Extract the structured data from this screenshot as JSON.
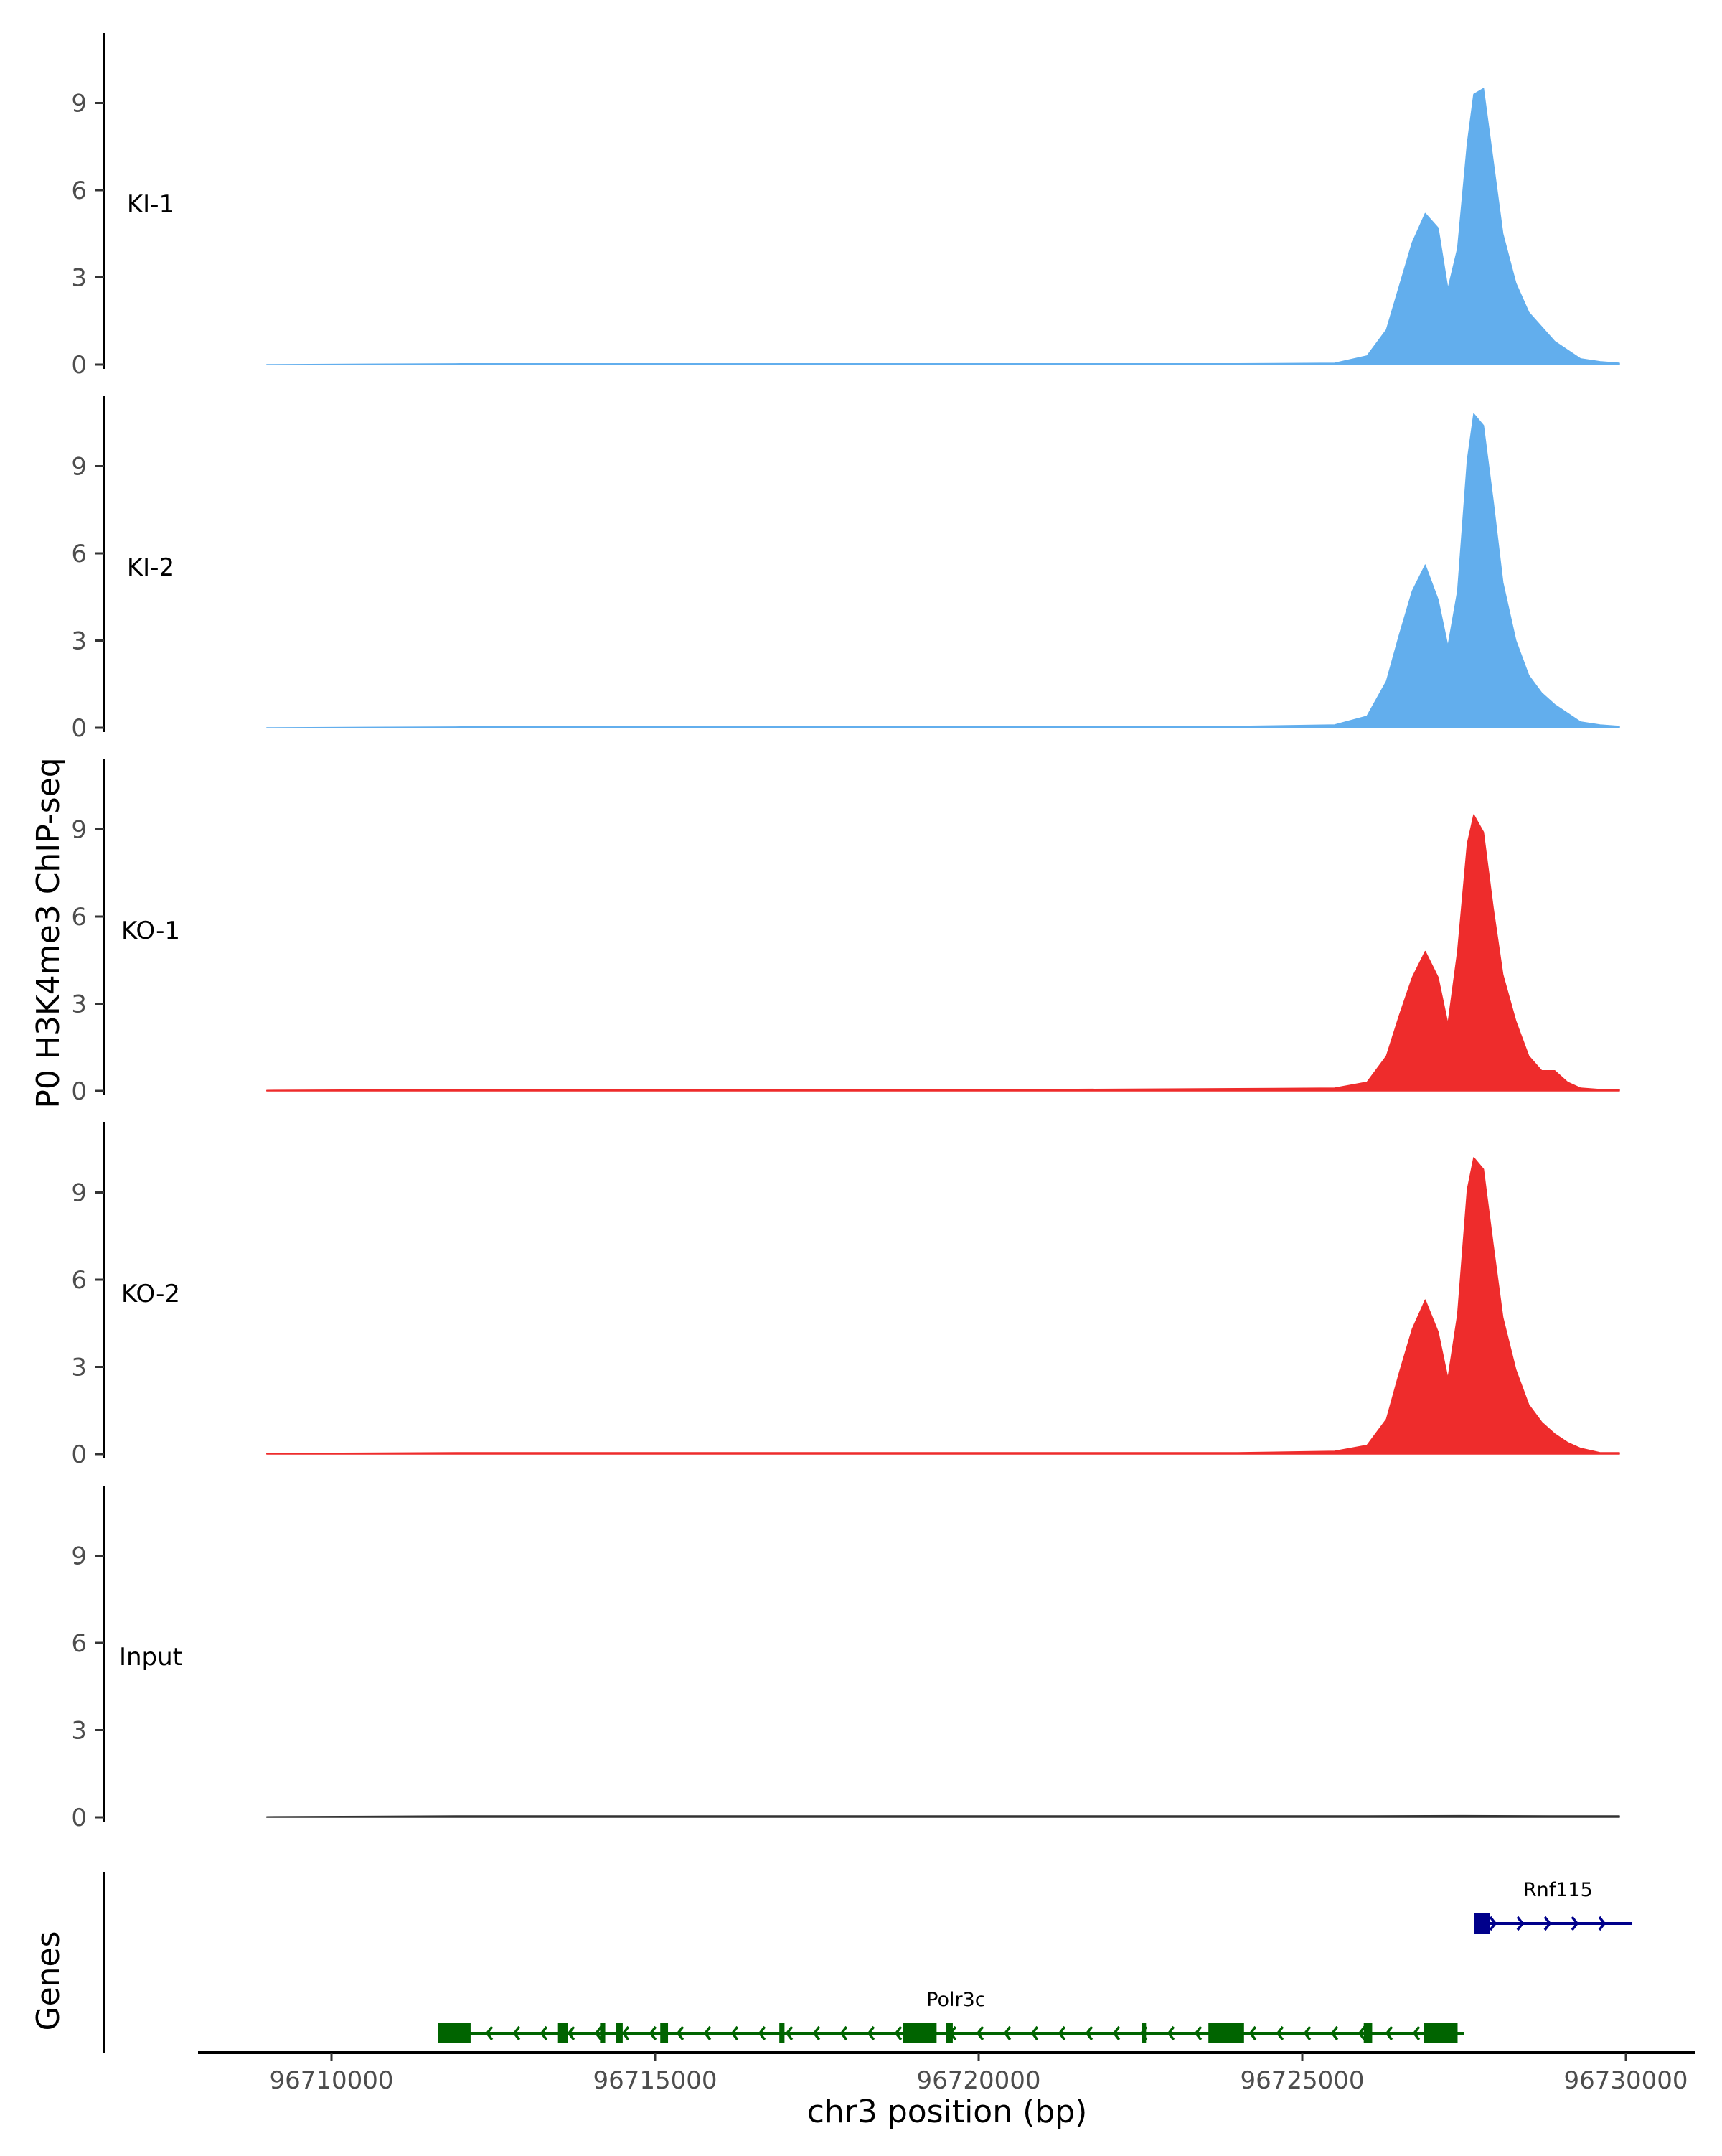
{
  "chart_data": {
    "type": "area",
    "title": "",
    "ylabel": "P0 H3K4me3 ChIP-seq",
    "xlabel": "chr3 position (bp)",
    "chromosome": "chr3",
    "xlim": [
      96708000,
      96731000
    ],
    "ylim": [
      0,
      11.5
    ],
    "y_ticks": [
      0,
      3,
      6,
      9
    ],
    "y_tick_labels": [
      "0",
      "3",
      "6",
      "9"
    ],
    "x_ticks": [
      96710000,
      96715000,
      96720000,
      96725000,
      96730000
    ],
    "x_tick_labels": [
      "96710000",
      "96715000",
      "96720000",
      "96725000",
      "96730000"
    ],
    "grid": false,
    "genes_label": "Genes",
    "series": [
      {
        "name": "KI-1",
        "color": "#62aeed",
        "x": [
          96709000,
          96712000,
          96715000,
          96718000,
          96721000,
          96724000,
          96725500,
          96726000,
          96726300,
          96726500,
          96726700,
          96726900,
          96727100,
          96727250,
          96727400,
          96727550,
          96727650,
          96727800,
          96727950,
          96728100,
          96728300,
          96728500,
          96728700,
          96728900,
          96729100,
          96729300,
          96729600,
          96729900
        ],
        "values": [
          0.0,
          0.03,
          0.03,
          0.03,
          0.03,
          0.03,
          0.05,
          0.3,
          1.2,
          2.7,
          4.2,
          5.2,
          4.7,
          2.6,
          4.0,
          7.6,
          9.3,
          9.5,
          7.0,
          4.5,
          2.8,
          1.8,
          1.3,
          0.8,
          0.5,
          0.2,
          0.1,
          0.05
        ]
      },
      {
        "name": "KI-2",
        "color": "#62aeed",
        "x": [
          96709000,
          96712000,
          96715000,
          96718000,
          96721000,
          96724000,
          96725500,
          96726000,
          96726300,
          96726500,
          96726700,
          96726900,
          96727100,
          96727250,
          96727400,
          96727550,
          96727650,
          96727800,
          96727950,
          96728100,
          96728300,
          96728500,
          96728700,
          96728900,
          96729100,
          96729300,
          96729600,
          96729900
        ],
        "values": [
          0.0,
          0.03,
          0.03,
          0.03,
          0.03,
          0.05,
          0.1,
          0.4,
          1.6,
          3.2,
          4.7,
          5.6,
          4.4,
          2.8,
          4.7,
          9.2,
          10.8,
          10.4,
          7.8,
          5.0,
          3.0,
          1.8,
          1.2,
          0.8,
          0.5,
          0.2,
          0.1,
          0.05
        ]
      },
      {
        "name": "KO-1",
        "color": "#ee2c2c",
        "x": [
          96709000,
          96712000,
          96715000,
          96718000,
          96721000,
          96724000,
          96725500,
          96726000,
          96726300,
          96726500,
          96726700,
          96726900,
          96727100,
          96727250,
          96727400,
          96727550,
          96727650,
          96727800,
          96727950,
          96728100,
          96728300,
          96728500,
          96728700,
          96728900,
          96729100,
          96729300,
          96729600,
          96729900
        ],
        "values": [
          0.02,
          0.05,
          0.05,
          0.05,
          0.05,
          0.08,
          0.1,
          0.3,
          1.2,
          2.6,
          3.9,
          4.8,
          3.9,
          2.3,
          4.8,
          8.5,
          9.5,
          8.9,
          6.3,
          4.0,
          2.4,
          1.2,
          0.7,
          0.7,
          0.3,
          0.1,
          0.05,
          0.05
        ]
      },
      {
        "name": "KO-2",
        "color": "#ee2c2c",
        "x": [
          96709000,
          96712000,
          96715000,
          96718000,
          96721000,
          96724000,
          96725500,
          96726000,
          96726300,
          96726500,
          96726700,
          96726900,
          96727100,
          96727250,
          96727400,
          96727550,
          96727650,
          96727800,
          96727950,
          96728100,
          96728300,
          96728500,
          96728700,
          96728900,
          96729100,
          96729300,
          96729600,
          96729900
        ],
        "values": [
          0.02,
          0.05,
          0.05,
          0.05,
          0.05,
          0.05,
          0.1,
          0.3,
          1.2,
          2.8,
          4.3,
          5.3,
          4.2,
          2.6,
          4.8,
          9.1,
          10.2,
          9.8,
          7.2,
          4.7,
          2.9,
          1.7,
          1.1,
          0.7,
          0.4,
          0.2,
          0.05,
          0.05
        ]
      },
      {
        "name": "Input",
        "color": "#333333",
        "x": [
          96709000,
          96712000,
          96715000,
          96718000,
          96721000,
          96724000,
          96726000,
          96727500,
          96729000,
          96729900
        ],
        "values": [
          0.02,
          0.05,
          0.05,
          0.05,
          0.05,
          0.05,
          0.05,
          0.06,
          0.05,
          0.05
        ]
      }
    ],
    "genes": [
      {
        "name": "Polr3c",
        "strand": "-",
        "color": "#006400",
        "start": 96711650,
        "end": 96727500,
        "exons": [
          [
            96711650,
            96712150
          ],
          [
            96713500,
            96713650
          ],
          [
            96714150,
            96714230
          ],
          [
            96714400,
            96714500
          ],
          [
            96715080,
            96715200
          ],
          [
            96716920,
            96717000
          ],
          [
            96718830,
            96719350
          ],
          [
            96719500,
            96719600
          ],
          [
            96722520,
            96722580
          ],
          [
            96723550,
            96724100
          ],
          [
            96725950,
            96726080
          ],
          [
            96726880,
            96727400
          ]
        ]
      },
      {
        "name": "Rnf115",
        "strand": "+",
        "color": "#00008b",
        "start": 96727650,
        "end": 96730100,
        "exons": [
          [
            96727650,
            96727900
          ]
        ]
      }
    ]
  }
}
